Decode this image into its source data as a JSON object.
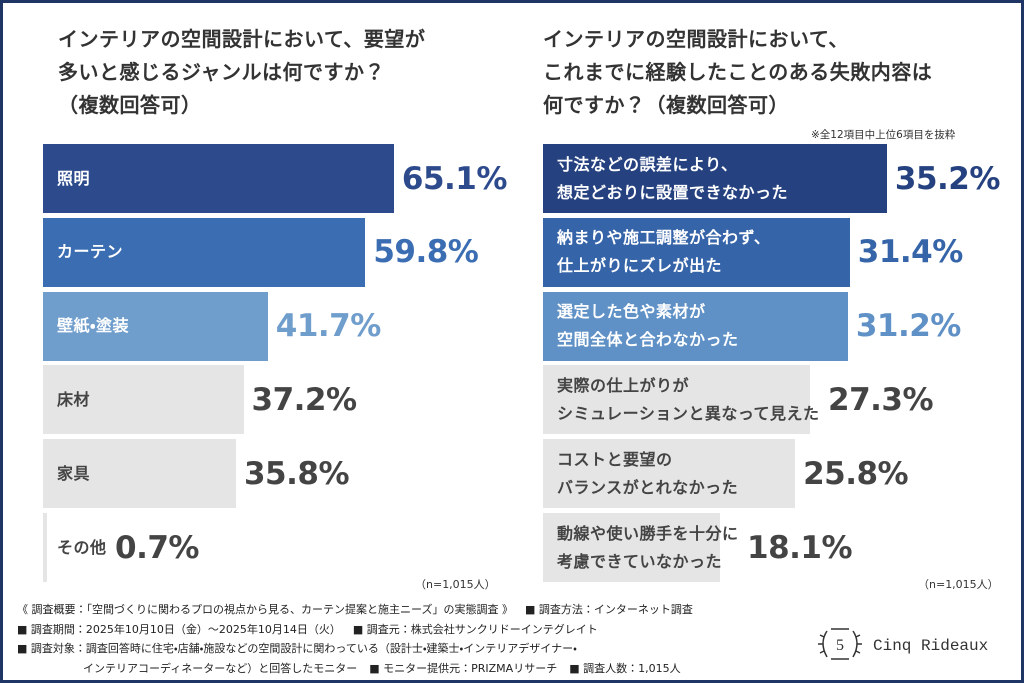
{
  "chart_data": [
    {
      "type": "bar",
      "orientation": "horizontal",
      "title": "インテリアの空間設計において、要望が\n多いと感じるジャンルは何ですか？\n（複数回答可）",
      "categories": [
        "照明",
        "カーテン",
        "壁紙・塗装",
        "床材",
        "家具",
        "その他"
      ],
      "values": [
        65.1,
        59.8,
        41.7,
        37.2,
        35.8,
        0.7
      ],
      "value_labels": [
        "65.1%",
        "59.8%",
        "41.7%",
        "37.2%",
        "35.8%",
        "0.7%"
      ],
      "colors": [
        "#2c4a8c",
        "#3b6db3",
        "#6f9dcc",
        "#e5e5e5",
        "#e5e5e5",
        "#e5e5e5"
      ],
      "value_colors": [
        "#2c4a8c",
        "#3b6db3",
        "#6f9dcc",
        "#444444",
        "#444444",
        "#444444"
      ],
      "sample_size": "（n=1,015人）"
    },
    {
      "type": "bar",
      "orientation": "horizontal",
      "title": "インテリアの空間設計において、\nこれまでに経験したことのある失敗内容は\n何ですか？（複数回答可）",
      "note": "※全12項目中上位6項目を抜粋",
      "categories": [
        "寸法などの誤差により、\n想定どおりに設置できなかった",
        "納まりや施工調整が合わず、\n仕上がりにズレが出た",
        "選定した色や素材が\n空間全体と合わなかった",
        "実際の仕上がりが\nシミュレーションと異なって見えた",
        "コストと要望の\nバランスがとれなかった",
        "動線や使い勝手を十分に\n考慮できていなかった"
      ],
      "values": [
        35.2,
        31.4,
        31.2,
        27.3,
        25.8,
        18.1
      ],
      "value_labels": [
        "35.2%",
        "31.4%",
        "31.2%",
        "27.3%",
        "25.8%",
        "18.1%"
      ],
      "colors": [
        "#25417f",
        "#3564a9",
        "#5f90c6",
        "#e5e5e5",
        "#e5e5e5",
        "#e5e5e5"
      ],
      "value_colors": [
        "#25417f",
        "#3564a9",
        "#5f90c6",
        "#444444",
        "#444444",
        "#444444"
      ],
      "sample_size": "（n=1,015人）"
    }
  ],
  "footer": [
    [
      "《 調査概要：「空間づくりに関わるプロの視点から見る、カーテン提案と施主ニーズ」の実態調査 》",
      "■ 調査方法：インターネット調査"
    ],
    [
      "■ 調査期間：2025年10月10日（金）〜2025年10月14日（火）",
      "■ 調査元：株式会社サンクリドーインテグレイト"
    ],
    [
      "■ 調査対象：調査回答時に住宅・店舗・施設などの空間設計に関わっている（設計士・建築士・インテリアデザイナー・"
    ],
    [
      "インテリアコーディネーターなど）と回答したモニター",
      "■ モニター提供元：PRIZMAリサーチ",
      "■ 調査人数：1,015人"
    ]
  ],
  "logo": {
    "emblem": "5",
    "text": "Cinq Rideaux"
  }
}
